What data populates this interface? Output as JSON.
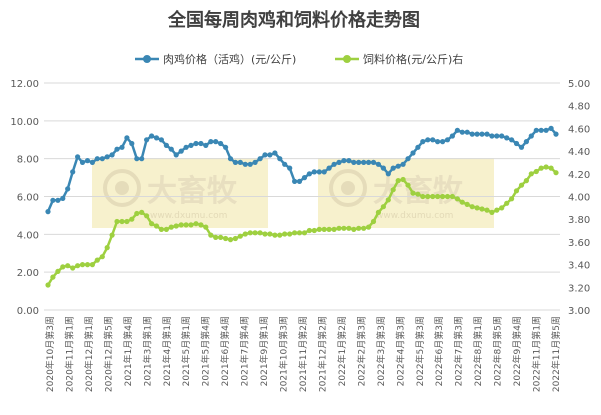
{
  "chart_data": {
    "type": "line",
    "title": "全国每周肉鸡和饲料价格走势图",
    "legend_position": "top",
    "grid": true,
    "colors": {
      "meat_chicken": "#3a87b4",
      "feed": "#9ed040"
    },
    "watermark": {
      "text": "大畜牧",
      "url": "www.dxumu.com"
    },
    "y_left": {
      "lim": [
        0,
        12
      ],
      "ticks": [
        "0.00",
        "2.00",
        "4.00",
        "6.00",
        "8.00",
        "10.00",
        "12.00"
      ]
    },
    "y_right": {
      "lim": [
        3.0,
        5.0
      ],
      "ticks": [
        "3.00",
        "3.20",
        "3.40",
        "3.60",
        "3.80",
        "4.00",
        "4.20",
        "4.40",
        "4.60",
        "4.80",
        "5.00"
      ]
    },
    "x_tick_labels": [
      "2020年10月第3周",
      "2020年11月第1周",
      "2020年12月第1周",
      "2020年12月第5周",
      "2021年1月第4周",
      "2021年3月第1周",
      "2021年4月第1周",
      "2021年5月第1周",
      "2021年5月第4周",
      "2021年6月第4周",
      "2021年7月第4周",
      "2021年9月第1周",
      "2021年10月第3周",
      "2021年11月第2周",
      "2021年12月第2周",
      "2022年1月第2周",
      "2022年2月第3周",
      "2022年3月第3周",
      "2022年4月第3周",
      "2022年5月第3周",
      "2022年6月第3周",
      "2022年7月第3周",
      "2022年8月第1周",
      "2022年8月第5周",
      "2022年9月第4周",
      "2022年11月第1周",
      "2022年11月第5周"
    ],
    "series": [
      {
        "name": "肉鸡价格（活鸡）(元/公斤)",
        "axis": "left",
        "values": [
          5.2,
          5.8,
          5.8,
          5.9,
          6.4,
          7.3,
          8.1,
          7.8,
          7.9,
          7.8,
          8.0,
          8.0,
          8.1,
          8.2,
          8.5,
          8.6,
          9.1,
          8.8,
          8.0,
          8.0,
          9.0,
          9.2,
          9.1,
          9.0,
          8.7,
          8.5,
          8.2,
          8.4,
          8.6,
          8.7,
          8.8,
          8.8,
          8.7,
          8.9,
          8.9,
          8.8,
          8.6,
          8.0,
          7.8,
          7.8,
          7.7,
          7.7,
          7.8,
          8.0,
          8.2,
          8.2,
          8.3,
          8.0,
          7.7,
          7.5,
          6.8,
          6.8,
          7.0,
          7.2,
          7.3,
          7.3,
          7.3,
          7.5,
          7.7,
          7.8,
          7.9,
          7.9,
          7.8,
          7.8,
          7.8,
          7.8,
          7.8,
          7.7,
          7.5,
          7.2,
          7.5,
          7.6,
          7.7,
          8.0,
          8.3,
          8.6,
          8.9,
          9.0,
          9.0,
          8.9,
          8.9,
          9.0,
          9.2,
          9.5,
          9.4,
          9.4,
          9.3,
          9.3,
          9.3,
          9.3,
          9.2,
          9.2,
          9.2,
          9.1,
          9.0,
          8.8,
          8.6,
          8.9,
          9.2,
          9.5,
          9.5,
          9.5,
          9.6,
          9.3
        ]
      },
      {
        "name": "饲料价格(元/公斤)右",
        "axis": "right",
        "values": [
          3.22,
          3.29,
          3.34,
          3.38,
          3.39,
          3.37,
          3.39,
          3.4,
          3.4,
          3.4,
          3.44,
          3.47,
          3.55,
          3.66,
          3.78,
          3.78,
          3.78,
          3.8,
          3.85,
          3.86,
          3.83,
          3.76,
          3.74,
          3.71,
          3.71,
          3.73,
          3.74,
          3.75,
          3.75,
          3.75,
          3.76,
          3.75,
          3.73,
          3.66,
          3.64,
          3.64,
          3.63,
          3.62,
          3.63,
          3.65,
          3.67,
          3.68,
          3.68,
          3.68,
          3.67,
          3.67,
          3.66,
          3.66,
          3.67,
          3.67,
          3.68,
          3.68,
          3.68,
          3.7,
          3.7,
          3.71,
          3.71,
          3.71,
          3.71,
          3.72,
          3.72,
          3.72,
          3.71,
          3.72,
          3.72,
          3.73,
          3.78,
          3.86,
          3.91,
          3.97,
          4.06,
          4.14,
          4.15,
          4.1,
          4.03,
          4.02,
          4.0,
          4.0,
          4.0,
          4.0,
          4.0,
          4.0,
          4.0,
          3.98,
          3.95,
          3.93,
          3.91,
          3.9,
          3.89,
          3.88,
          3.86,
          3.88,
          3.9,
          3.94,
          3.98,
          4.05,
          4.1,
          4.14,
          4.2,
          4.22,
          4.25,
          4.26,
          4.25,
          4.21
        ]
      }
    ]
  }
}
